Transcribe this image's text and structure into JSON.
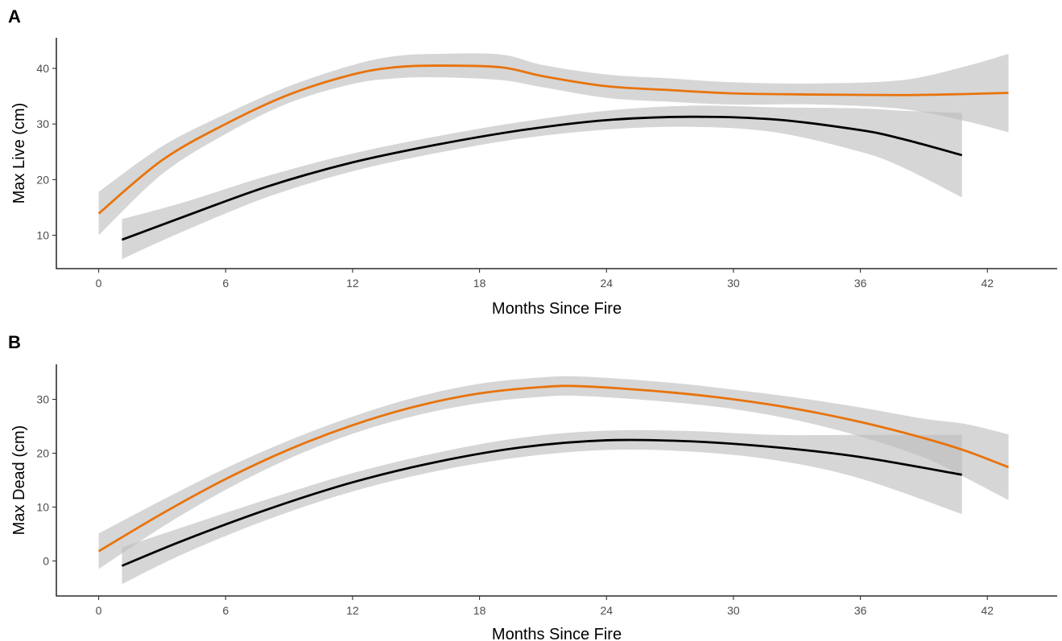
{
  "chart_data": [
    {
      "type": "line",
      "panel_label": "A",
      "xlabel": "Months Since Fire",
      "ylabel": "Max Live (cm)",
      "xlim": [
        -2,
        45.3
      ],
      "ylim": [
        4.0,
        45.5
      ],
      "xticks": [
        0,
        6,
        12,
        18,
        24,
        30,
        36,
        42
      ],
      "yticks": [
        10,
        20,
        30,
        40
      ],
      "grid": false,
      "legend": "none",
      "series": [
        {
          "color": "#e8730c",
          "band_color": "#bdbdbd",
          "points": [
            {
              "x": 0,
              "y": 13.9,
              "lo": 10.0,
              "hi": 17.8
            },
            {
              "x": 3,
              "y": 23.5,
              "lo": 21.0,
              "hi": 26.0
            },
            {
              "x": 6,
              "y": 30.0,
              "lo": 28.2,
              "hi": 31.8
            },
            {
              "x": 9,
              "y": 35.3,
              "lo": 33.8,
              "hi": 36.8
            },
            {
              "x": 12,
              "y": 38.9,
              "lo": 37.2,
              "hi": 40.6
            },
            {
              "x": 14,
              "y": 40.2,
              "lo": 38.2,
              "hi": 42.2
            },
            {
              "x": 16,
              "y": 40.5,
              "lo": 38.4,
              "hi": 42.6
            },
            {
              "x": 19,
              "y": 40.2,
              "lo": 37.9,
              "hi": 42.5
            },
            {
              "x": 21,
              "y": 38.6,
              "lo": 36.6,
              "hi": 40.6
            },
            {
              "x": 24,
              "y": 36.8,
              "lo": 34.7,
              "hi": 38.9
            },
            {
              "x": 27,
              "y": 36.1,
              "lo": 34.0,
              "hi": 38.2
            },
            {
              "x": 30,
              "y": 35.5,
              "lo": 33.5,
              "hi": 37.5
            },
            {
              "x": 34,
              "y": 35.3,
              "lo": 33.5,
              "hi": 37.3
            },
            {
              "x": 38,
              "y": 35.2,
              "lo": 32.7,
              "hi": 37.9
            },
            {
              "x": 41,
              "y": 35.4,
              "lo": 30.5,
              "hi": 40.4
            },
            {
              "x": 43,
              "y": 35.6,
              "lo": 28.5,
              "hi": 42.6
            }
          ]
        },
        {
          "color": "#000000",
          "band_color": "#bdbdbd",
          "points": [
            {
              "x": 1.1,
              "y": 9.2,
              "lo": 5.7,
              "hi": 12.9
            },
            {
              "x": 4,
              "y": 13.3,
              "lo": 10.7,
              "hi": 15.9
            },
            {
              "x": 8,
              "y": 18.8,
              "lo": 16.9,
              "hi": 20.7
            },
            {
              "x": 12,
              "y": 23.1,
              "lo": 21.5,
              "hi": 24.7
            },
            {
              "x": 16,
              "y": 26.3,
              "lo": 24.8,
              "hi": 27.8
            },
            {
              "x": 20,
              "y": 28.9,
              "lo": 27.4,
              "hi": 30.4
            },
            {
              "x": 24,
              "y": 30.7,
              "lo": 29.0,
              "hi": 32.4
            },
            {
              "x": 28,
              "y": 31.3,
              "lo": 29.5,
              "hi": 33.3
            },
            {
              "x": 32,
              "y": 30.8,
              "lo": 28.5,
              "hi": 33.0
            },
            {
              "x": 36,
              "y": 28.9,
              "lo": 25.0,
              "hi": 32.8
            },
            {
              "x": 38,
              "y": 27.3,
              "lo": 22.2,
              "hi": 32.4
            },
            {
              "x": 40.8,
              "y": 24.4,
              "lo": 16.8,
              "hi": 32.0
            }
          ]
        }
      ]
    },
    {
      "type": "line",
      "panel_label": "B",
      "xlabel": "Months Since Fire",
      "ylabel": "Max Dead (cm)",
      "xlim": [
        -2,
        45.3
      ],
      "ylim": [
        -6.5,
        36.5
      ],
      "xticks": [
        0,
        6,
        12,
        18,
        24,
        30,
        36,
        42
      ],
      "yticks": [
        0,
        10,
        20,
        30
      ],
      "grid": false,
      "legend": "none",
      "series": [
        {
          "color": "#e8730c",
          "band_color": "#bdbdbd",
          "points": [
            {
              "x": 0,
              "y": 1.8,
              "lo": -1.5,
              "hi": 5.1
            },
            {
              "x": 3,
              "y": 8.8,
              "lo": 6.3,
              "hi": 11.3
            },
            {
              "x": 6,
              "y": 15.2,
              "lo": 13.2,
              "hi": 17.2
            },
            {
              "x": 9,
              "y": 20.7,
              "lo": 19.0,
              "hi": 22.4
            },
            {
              "x": 12,
              "y": 25.2,
              "lo": 23.6,
              "hi": 26.8
            },
            {
              "x": 15,
              "y": 28.7,
              "lo": 27.0,
              "hi": 30.4
            },
            {
              "x": 18,
              "y": 31.1,
              "lo": 29.3,
              "hi": 32.9
            },
            {
              "x": 21,
              "y": 32.3,
              "lo": 30.5,
              "hi": 34.1
            },
            {
              "x": 23,
              "y": 32.4,
              "lo": 30.6,
              "hi": 34.2
            },
            {
              "x": 27,
              "y": 31.3,
              "lo": 29.5,
              "hi": 33.1
            },
            {
              "x": 30,
              "y": 30.0,
              "lo": 28.2,
              "hi": 31.8
            },
            {
              "x": 33,
              "y": 28.2,
              "lo": 26.1,
              "hi": 30.3
            },
            {
              "x": 36,
              "y": 25.8,
              "lo": 23.1,
              "hi": 28.5
            },
            {
              "x": 39,
              "y": 22.8,
              "lo": 19.2,
              "hi": 26.4
            },
            {
              "x": 41,
              "y": 20.4,
              "lo": 15.4,
              "hi": 25.4
            },
            {
              "x": 43,
              "y": 17.4,
              "lo": 11.3,
              "hi": 23.5
            }
          ]
        },
        {
          "color": "#000000",
          "band_color": "#bdbdbd",
          "points": [
            {
              "x": 1.1,
              "y": -0.9,
              "lo": -4.3,
              "hi": 2.5
            },
            {
              "x": 4,
              "y": 3.8,
              "lo": 1.3,
              "hi": 6.3
            },
            {
              "x": 8,
              "y": 9.6,
              "lo": 7.7,
              "hi": 11.5
            },
            {
              "x": 12,
              "y": 14.6,
              "lo": 12.9,
              "hi": 16.3
            },
            {
              "x": 16,
              "y": 18.4,
              "lo": 16.7,
              "hi": 20.1
            },
            {
              "x": 20,
              "y": 21.1,
              "lo": 19.3,
              "hi": 22.9
            },
            {
              "x": 24,
              "y": 22.4,
              "lo": 20.6,
              "hi": 24.2
            },
            {
              "x": 28,
              "y": 22.2,
              "lo": 20.3,
              "hi": 24.1
            },
            {
              "x": 32,
              "y": 21.1,
              "lo": 18.7,
              "hi": 23.4
            },
            {
              "x": 36,
              "y": 19.3,
              "lo": 15.3,
              "hi": 23.4
            },
            {
              "x": 40.8,
              "y": 16.0,
              "lo": 8.7,
              "hi": 23.4
            }
          ]
        }
      ]
    }
  ]
}
